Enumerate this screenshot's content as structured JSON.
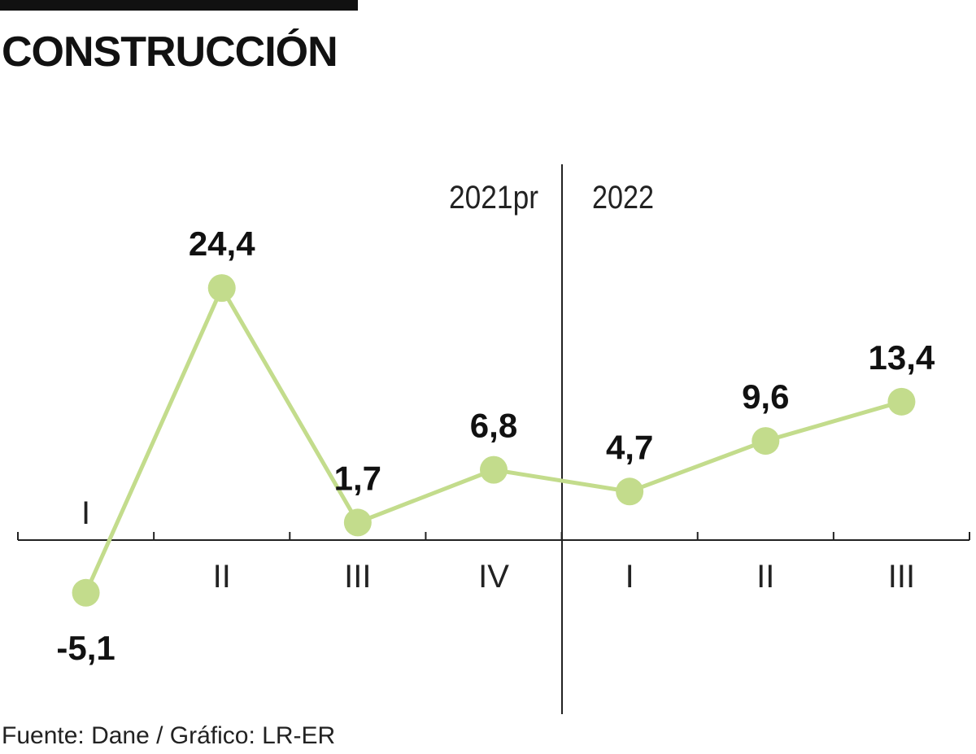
{
  "header": {
    "title": "CONSTRUCCIÓN"
  },
  "chart_data": {
    "type": "line",
    "title": "CONSTRUCCIÓN",
    "periods": [
      "2021pr",
      "2022"
    ],
    "categories": [
      "I",
      "II",
      "III",
      "IV",
      "I",
      "II",
      "III"
    ],
    "values": [
      -5.1,
      24.4,
      1.7,
      6.8,
      4.7,
      9.6,
      13.4
    ],
    "data_labels": [
      "-5,1",
      "24,4",
      "1,7",
      "6,8",
      "4,7",
      "9,6",
      "13,4"
    ],
    "series_color": "#c3dc8c",
    "axis_color": "#222222",
    "grid": false
  },
  "footer": {
    "source": "Fuente: Dane / Gráfico: LR-ER"
  }
}
